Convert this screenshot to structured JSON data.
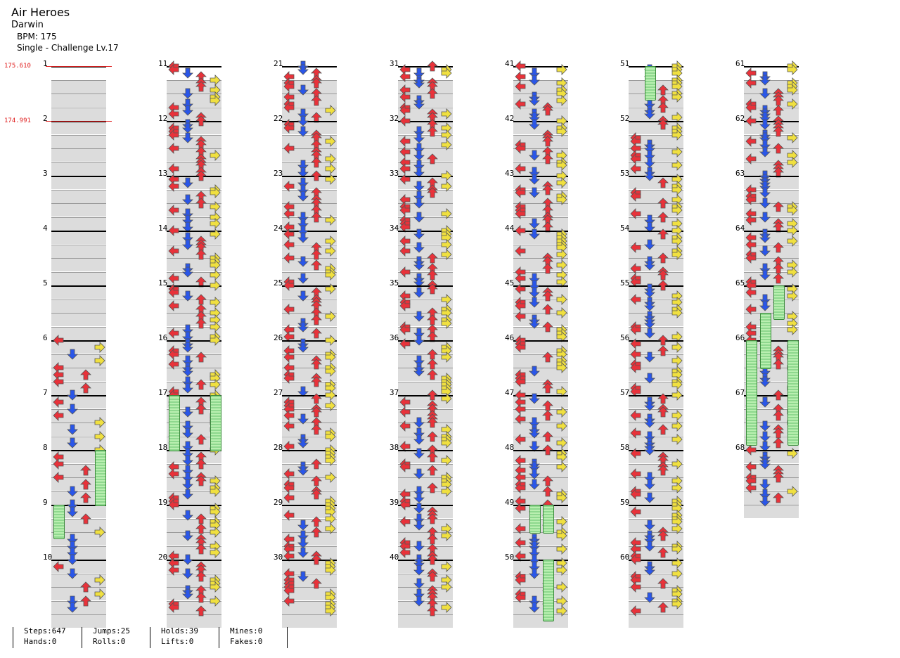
{
  "song": {
    "title": "Air Heroes",
    "artist": "Darwin",
    "bpm_text": "BPM: 175",
    "chart_text": "Single - Challenge Lv.17"
  },
  "bpm_changes": [
    {
      "label": "175.610",
      "measure": 1
    },
    {
      "label": "174.991",
      "measure": 2
    }
  ],
  "colors": {
    "left": "#e8323a",
    "down": "#2a56e8",
    "up": "#e8323a",
    "right": "#f0e040",
    "hold": "#8ed88e",
    "bpm": "#e02020"
  },
  "columns": [
    {
      "start": 1,
      "end": 10
    },
    {
      "start": 11,
      "end": 20
    },
    {
      "start": 21,
      "end": 30
    },
    {
      "start": 31,
      "end": 40
    },
    {
      "start": 41,
      "end": 50
    },
    {
      "start": 51,
      "end": 60
    },
    {
      "start": 61,
      "end": 68
    }
  ],
  "stats": {
    "steps": "Steps:647",
    "jumps": "Jumps:25",
    "holds": "Holds:39",
    "mines": "Mines:0",
    "hands": "Hands:0",
    "rolls": "Rolls:0",
    "lifts": "Lifts:0",
    "fakes": "Fakes:0"
  }
}
